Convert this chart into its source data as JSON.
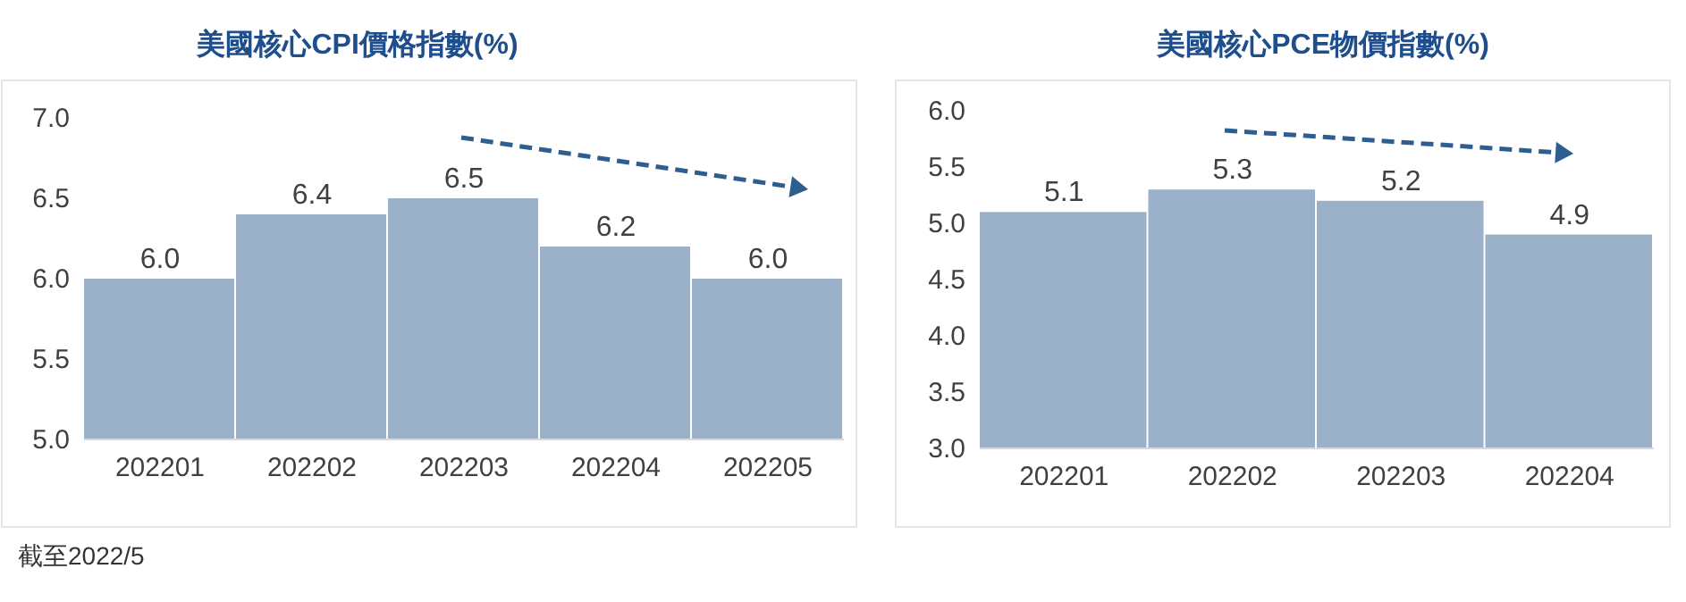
{
  "chart_data": [
    {
      "type": "bar",
      "title": "美國核心CPI價格指數(%)",
      "categories": [
        "202201",
        "202202",
        "202203",
        "202204",
        "202205"
      ],
      "values": [
        6.0,
        6.4,
        6.5,
        6.2,
        6.0
      ],
      "value_labels": [
        "6.0",
        "6.4",
        "6.5",
        "6.2",
        "6.0"
      ],
      "color": "#9bb0c9",
      "ylim": [
        5.0,
        7.0
      ],
      "yticks": [
        {
          "value": 5.0,
          "label": "5.0"
        },
        {
          "value": 5.5,
          "label": "5.5"
        },
        {
          "value": 6.0,
          "label": "6.0"
        },
        {
          "value": 6.5,
          "label": "6.5"
        },
        {
          "value": 7.0,
          "label": "7.0"
        }
      ],
      "annotations": [
        "截至2022/5"
      ]
    },
    {
      "type": "bar",
      "title": "美國核心PCE物價指數(%)",
      "categories": [
        "202201",
        "202202",
        "202203",
        "202204"
      ],
      "values": [
        5.1,
        5.3,
        5.2,
        4.9
      ],
      "value_labels": [
        "5.1",
        "5.3",
        "5.2",
        "4.9"
      ],
      "color": "#9bb0c9",
      "ylim": [
        3.0,
        6.0
      ],
      "yticks": [
        {
          "value": 3.0,
          "label": "3.0"
        },
        {
          "value": 3.5,
          "label": "3.5"
        },
        {
          "value": 4.0,
          "label": "4.0"
        },
        {
          "value": 4.5,
          "label": "4.5"
        },
        {
          "value": 5.0,
          "label": "5.0"
        },
        {
          "value": 5.5,
          "label": "5.5"
        },
        {
          "value": 6.0,
          "label": "6.0"
        }
      ]
    }
  ]
}
